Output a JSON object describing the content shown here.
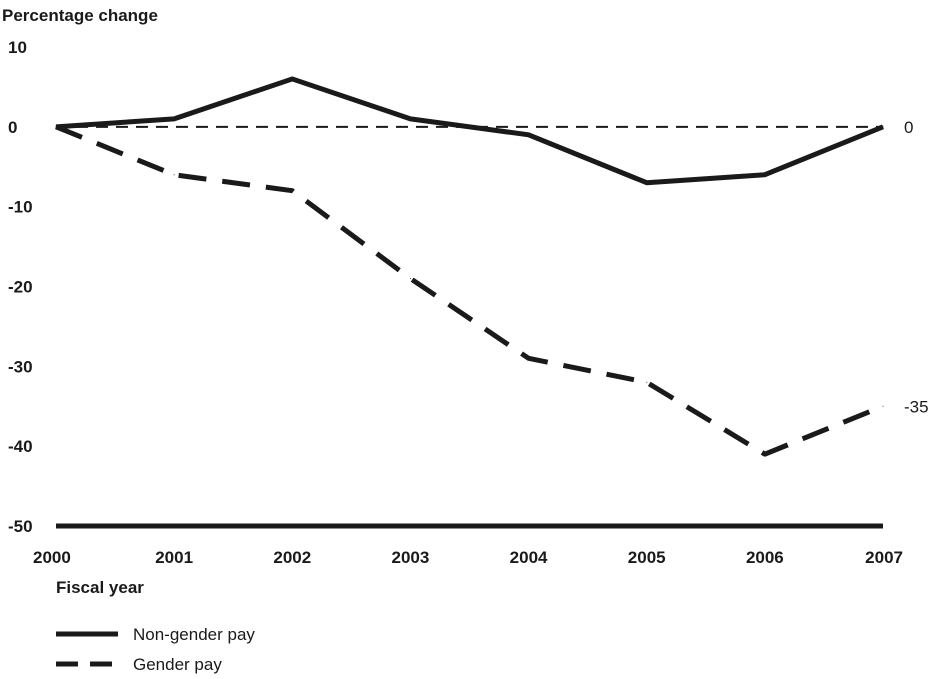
{
  "chart_data": {
    "type": "line",
    "ylabel": "Percentage change",
    "xlabel": "Fiscal year",
    "x": [
      "2000",
      "2001",
      "2002",
      "2003",
      "2004",
      "2005",
      "2006",
      "2007"
    ],
    "ylim": [
      -50,
      10
    ],
    "yticks": [
      "10",
      "0",
      "-10",
      "-20",
      "-30",
      "-40",
      "-50"
    ],
    "ytick_values": [
      10,
      0,
      -10,
      -20,
      -30,
      -40,
      -50
    ],
    "series": [
      {
        "name": "Non-gender pay",
        "style": "solid",
        "values": [
          0,
          1,
          6,
          1,
          -1,
          -7,
          -6,
          0
        ],
        "end_label": "0"
      },
      {
        "name": "Gender pay",
        "style": "dashed",
        "values": [
          0,
          -6,
          -8,
          -19,
          -29,
          -32,
          -41,
          -35
        ],
        "end_label": "-35"
      }
    ],
    "reference_line": {
      "value": 0,
      "style": "dashed"
    },
    "legend_position": "bottom-left",
    "grid": false,
    "line_color": "#1a1a1a"
  }
}
